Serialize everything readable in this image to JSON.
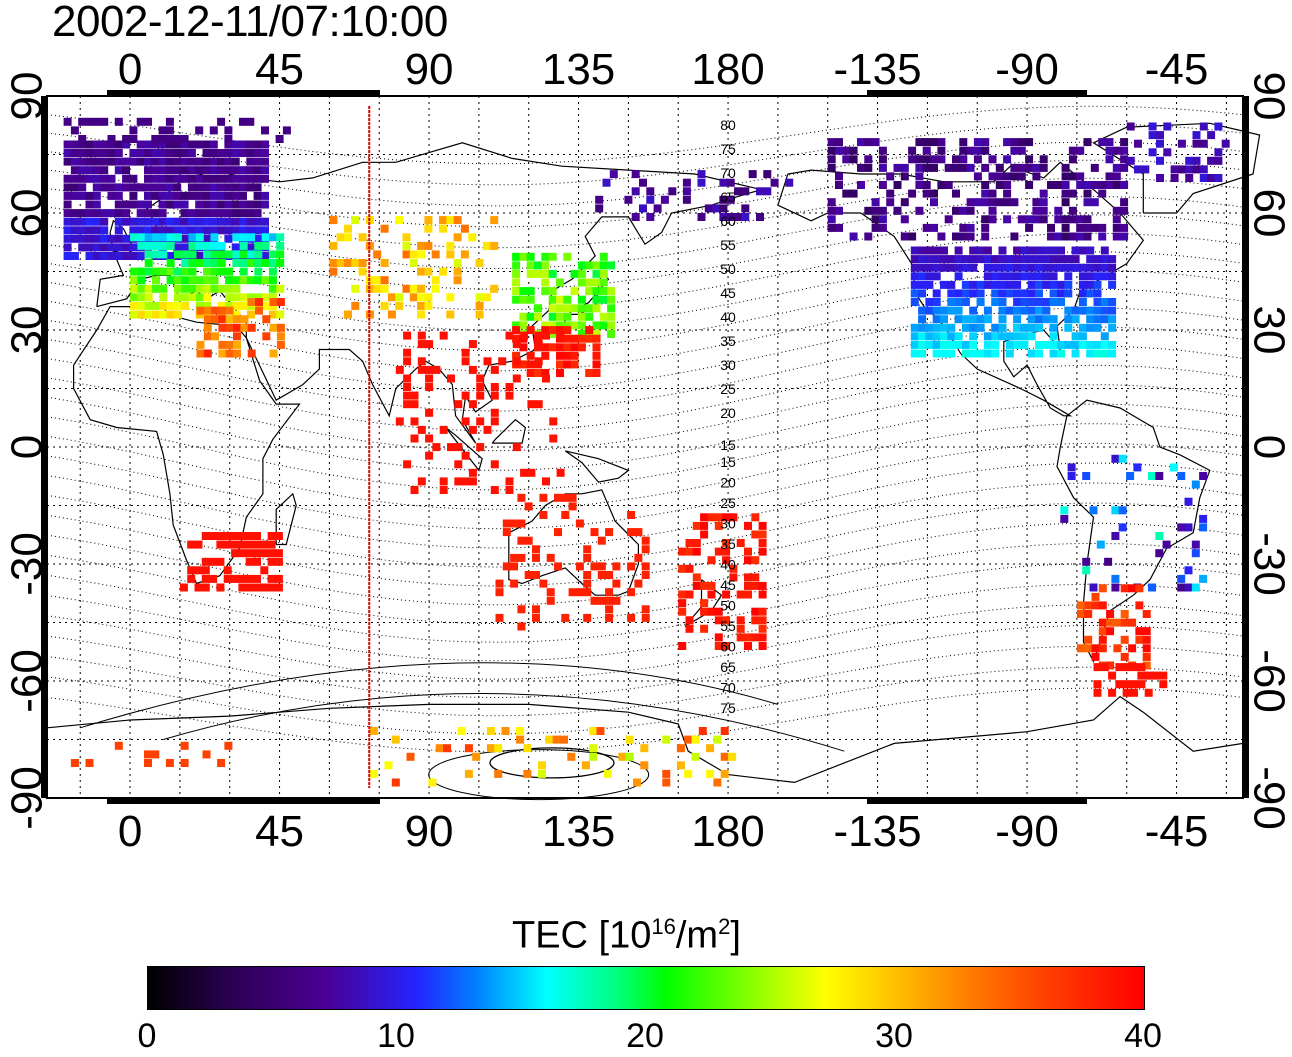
{
  "timestamp": "2002-12-11/07:10:00",
  "map": {
    "projection": "equirectangular",
    "lon_ticks": [
      "0",
      "45",
      "90",
      "135",
      "180",
      "-135",
      "-90",
      "-45"
    ],
    "lat_ticks": [
      "90",
      "60",
      "30",
      "0",
      "-30",
      "-60",
      "-90"
    ],
    "highlight_line_color": "#e00000",
    "highlight_longitude": 72
  },
  "contour_labels": {
    "north": [
      "80",
      "75",
      "70",
      "65",
      "60",
      "55",
      "50",
      "45",
      "40",
      "35",
      "30",
      "25",
      "20",
      "15"
    ],
    "south": [
      "15",
      "20",
      "25",
      "30",
      "35",
      "40",
      "45",
      "50",
      "55",
      "60",
      "65",
      "70",
      "75"
    ]
  },
  "colorbar": {
    "title": "TEC  [10",
    "title_exponent": "16",
    "title_mid": "/m",
    "title_sq": "2",
    "title_end": "]",
    "labels": [
      "0",
      "10",
      "20",
      "30",
      "40"
    ],
    "min": 0,
    "max": 40
  }
}
